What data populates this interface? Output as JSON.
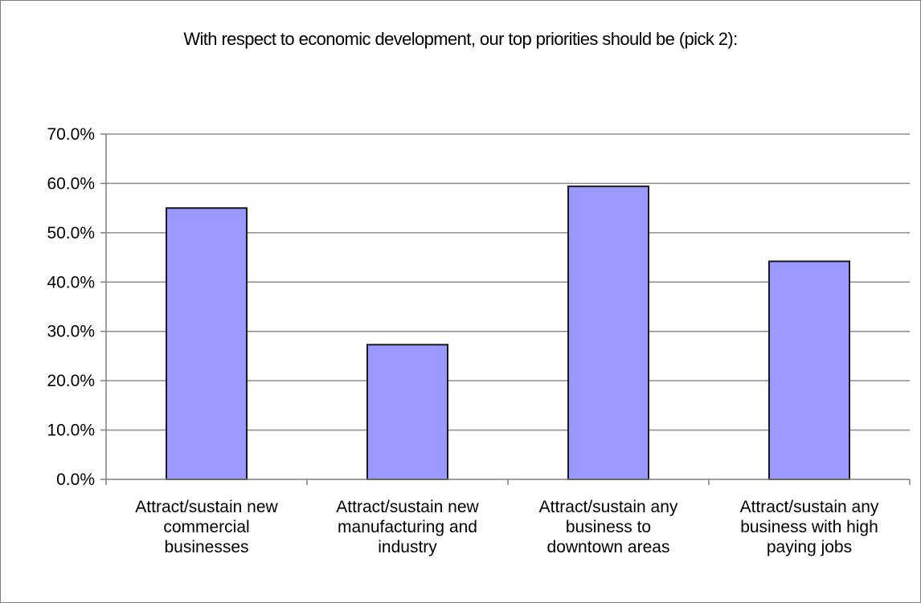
{
  "chart_data": {
    "type": "bar",
    "title": "With respect to economic development, our top priorities should be (pick 2):",
    "categories": [
      [
        "Attract/sustain new",
        "commercial",
        "businesses"
      ],
      [
        "Attract/sustain new",
        "manufacturing and",
        "industry"
      ],
      [
        "Attract/sustain any",
        "business to",
        "downtown areas"
      ],
      [
        "Attract/sustain any",
        "business with high",
        "paying jobs"
      ]
    ],
    "values": [
      55.0,
      27.3,
      59.4,
      44.2
    ],
    "ylim": [
      0,
      70
    ],
    "yticks": [
      0,
      10,
      20,
      30,
      40,
      50,
      60,
      70
    ],
    "ytick_labels": [
      "0.0%",
      "10.0%",
      "20.0%",
      "30.0%",
      "40.0%",
      "50.0%",
      "60.0%",
      "70.0%"
    ],
    "grid": true,
    "legend": "none",
    "colors": {
      "bar_fill": "#9999ff",
      "bar_stroke": "#1a1a1a",
      "grid": "#8c8c8c",
      "axis": "#808080"
    }
  }
}
